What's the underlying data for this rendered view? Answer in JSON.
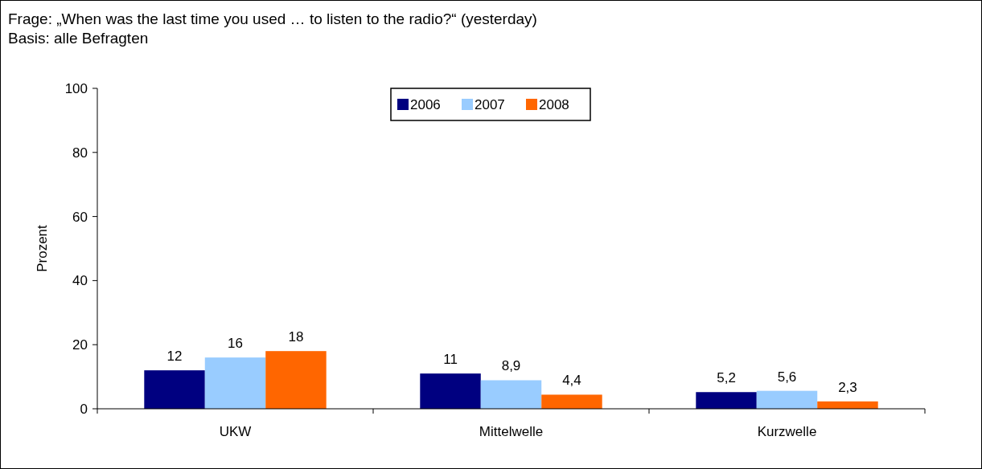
{
  "chart_data": {
    "type": "bar",
    "title": "Frage: „When was the last time you used … to listen to the radio?“ (yesterday)",
    "subtitle": "Basis: alle Befragten",
    "ylabel": "Prozent",
    "categories": [
      "UKW",
      "Mittelwelle",
      "Kurzwelle"
    ],
    "series": [
      {
        "name": "2006",
        "color": "#000080",
        "values": [
          12,
          11,
          5.2
        ],
        "value_labels": [
          "12",
          "11",
          "5,2"
        ]
      },
      {
        "name": "2007",
        "color": "#99ccff",
        "values": [
          16,
          8.9,
          5.6
        ],
        "value_labels": [
          "16",
          "8,9",
          "5,6"
        ]
      },
      {
        "name": "2008",
        "color": "#ff6600",
        "values": [
          18,
          4.4,
          2.3
        ],
        "value_labels": [
          "18",
          "4,4",
          "2,3"
        ]
      }
    ],
    "ylim": [
      0,
      100
    ],
    "yticks": [
      0,
      20,
      40,
      60,
      80,
      100
    ],
    "legend": "top"
  }
}
